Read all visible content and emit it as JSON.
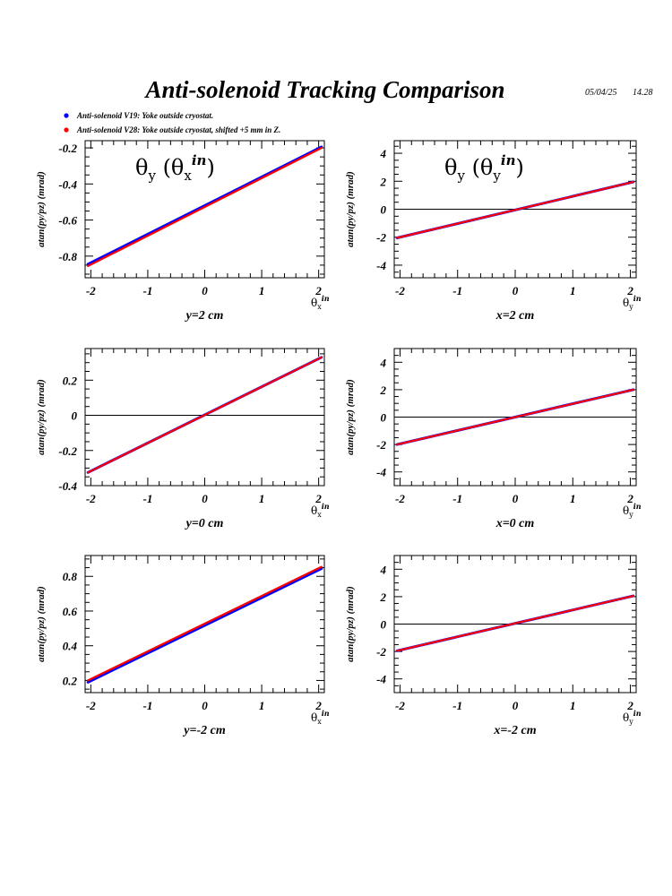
{
  "header": {
    "title": "Anti-solenoid Tracking Comparison",
    "date": "05/04/25",
    "time": "14.28"
  },
  "legend": {
    "items": [
      {
        "label": "Anti-solenoid V19: Yoke outside cryostat.",
        "color": "#0000ff"
      },
      {
        "label": "Anti-solenoid V28: Yoke outside cryostat, shifted +5 mm in Z.",
        "color": "#ff0000"
      }
    ]
  },
  "chart_data": [
    {
      "type": "line",
      "ylabel": "atan(py/pz) (mrad)",
      "xlabel": "y=2 cm",
      "xaxis_base": "θ",
      "xaxis_sub": "x",
      "xaxis_sup": "in",
      "annotation_main": "θ",
      "annotation_sub1": "y",
      "annotation_open": " (θ",
      "annotation_sub2": "x",
      "annotation_sup": "in",
      "annotation_close": ")",
      "xlim": [
        -2.1,
        2.1
      ],
      "ylim": [
        -0.92,
        -0.16
      ],
      "xticks": [
        -2,
        -1,
        0,
        1,
        2
      ],
      "xtick_labels": [
        "-2",
        "-1",
        "0",
        "1",
        "2"
      ],
      "yticks": [
        -0.8,
        -0.6,
        -0.4,
        -0.2
      ],
      "ytick_labels": [
        "-0.8",
        "-0.6",
        "-0.4",
        "-0.2"
      ],
      "zero_line": false,
      "series": [
        {
          "x": [
            -2.05,
            2.05
          ],
          "y": [
            -0.845,
            -0.195
          ],
          "color": "#0000ff"
        },
        {
          "x": [
            -2.05,
            2.05
          ],
          "y": [
            -0.855,
            -0.2
          ],
          "color": "#ff0000"
        }
      ]
    },
    {
      "type": "line",
      "ylabel": "atan(py/pz) (mrad)",
      "xlabel": "x=2 cm",
      "xaxis_base": "θ",
      "xaxis_sub": "y",
      "xaxis_sup": "in",
      "annotation_main": "θ",
      "annotation_sub1": "y",
      "annotation_open": " (θ",
      "annotation_sub2": "y",
      "annotation_sup": "in",
      "annotation_close": ")",
      "xlim": [
        -2.1,
        2.1
      ],
      "ylim": [
        -4.9,
        4.9
      ],
      "xticks": [
        -2,
        -1,
        0,
        1,
        2
      ],
      "xtick_labels": [
        "-2",
        "-1",
        "0",
        "1",
        "2"
      ],
      "yticks": [
        -4,
        -2,
        0,
        2,
        4
      ],
      "ytick_labels": [
        "-4",
        "-2",
        "0",
        "2",
        "4"
      ],
      "zero_line": true,
      "series": [
        {
          "x": [
            -2.05,
            2.05
          ],
          "y": [
            -2.05,
            1.95
          ],
          "color": "#0000ff"
        },
        {
          "x": [
            -2.05,
            2.05
          ],
          "y": [
            -2.05,
            1.95
          ],
          "color": "#ff0000"
        }
      ]
    },
    {
      "type": "line",
      "ylabel": "atan(py/pz) (mrad)",
      "xlabel": "y=0 cm",
      "xaxis_base": "θ",
      "xaxis_sub": "x",
      "xaxis_sup": "in",
      "xlim": [
        -2.1,
        2.1
      ],
      "ylim": [
        -0.4,
        0.38
      ],
      "xticks": [
        -2,
        -1,
        0,
        1,
        2
      ],
      "xtick_labels": [
        "-2",
        "-1",
        "0",
        "1",
        "2"
      ],
      "yticks": [
        -0.4,
        -0.2,
        0,
        0.2
      ],
      "ytick_labels": [
        "-0.4",
        "-0.2",
        "0",
        "0.2"
      ],
      "zero_line": true,
      "series": [
        {
          "x": [
            -2.05,
            2.05
          ],
          "y": [
            -0.325,
            0.33
          ],
          "color": "#0000ff"
        },
        {
          "x": [
            -2.05,
            2.05
          ],
          "y": [
            -0.325,
            0.33
          ],
          "color": "#ff0000"
        }
      ]
    },
    {
      "type": "line",
      "ylabel": "atan(py/pz) (mrad)",
      "xlabel": "x=0 cm",
      "xaxis_base": "θ",
      "xaxis_sub": "y",
      "xaxis_sup": "in",
      "xlim": [
        -2.1,
        2.1
      ],
      "ylim": [
        -5,
        5
      ],
      "xticks": [
        -2,
        -1,
        0,
        1,
        2
      ],
      "xtick_labels": [
        "-2",
        "-1",
        "0",
        "1",
        "2"
      ],
      "yticks": [
        -4,
        -2,
        0,
        2,
        4
      ],
      "ytick_labels": [
        "-4",
        "-2",
        "0",
        "2",
        "4"
      ],
      "zero_line": true,
      "series": [
        {
          "x": [
            -2.05,
            2.05
          ],
          "y": [
            -2.0,
            2.0
          ],
          "color": "#0000ff"
        },
        {
          "x": [
            -2.05,
            2.05
          ],
          "y": [
            -2.0,
            2.0
          ],
          "color": "#ff0000"
        }
      ]
    },
    {
      "type": "line",
      "ylabel": "atan(py/pz) (mrad)",
      "xlabel": "y=-2 cm",
      "xaxis_base": "θ",
      "xaxis_sub": "x",
      "xaxis_sup": "in",
      "xlim": [
        -2.1,
        2.1
      ],
      "ylim": [
        0.13,
        0.92
      ],
      "xticks": [
        -2,
        -1,
        0,
        1,
        2
      ],
      "xtick_labels": [
        "-2",
        "-1",
        "0",
        "1",
        "2"
      ],
      "yticks": [
        0.2,
        0.4,
        0.6,
        0.8
      ],
      "ytick_labels": [
        "0.2",
        "0.4",
        "0.6",
        "0.8"
      ],
      "zero_line": false,
      "series": [
        {
          "x": [
            -2.05,
            2.05
          ],
          "y": [
            0.19,
            0.845
          ],
          "color": "#0000ff"
        },
        {
          "x": [
            -2.05,
            2.05
          ],
          "y": [
            0.2,
            0.855
          ],
          "color": "#ff0000"
        }
      ]
    },
    {
      "type": "line",
      "ylabel": "atan(py/pz) (mrad)",
      "xlabel": "x=-2 cm",
      "xaxis_base": "θ",
      "xaxis_sub": "y",
      "xaxis_sup": "in",
      "xlim": [
        -2.1,
        2.1
      ],
      "ylim": [
        -5,
        5
      ],
      "xticks": [
        -2,
        -1,
        0,
        1,
        2
      ],
      "xtick_labels": [
        "-2",
        "-1",
        "0",
        "1",
        "2"
      ],
      "yticks": [
        -4,
        -2,
        0,
        2,
        4
      ],
      "ytick_labels": [
        "-4",
        "-2",
        "0",
        "2",
        "4"
      ],
      "zero_line": true,
      "series": [
        {
          "x": [
            -2.05,
            2.05
          ],
          "y": [
            -1.95,
            2.05
          ],
          "color": "#0000ff"
        },
        {
          "x": [
            -2.05,
            2.05
          ],
          "y": [
            -1.95,
            2.05
          ],
          "color": "#ff0000"
        }
      ]
    }
  ]
}
